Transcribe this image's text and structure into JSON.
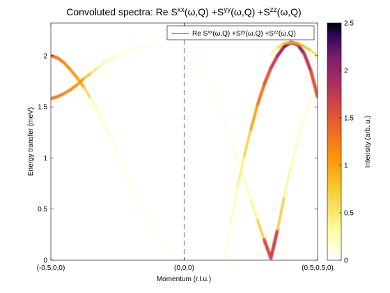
{
  "chart_data": {
    "type": "heatmap",
    "title": {
      "parts": [
        {
          "t": "Convoluted spectra: Re S"
        },
        {
          "t": "xx",
          "sup": true
        },
        {
          "t": "(ω,Q) +S"
        },
        {
          "t": "yy",
          "sup": true
        },
        {
          "t": "(ω,Q) +S"
        },
        {
          "t": "zz",
          "sup": true
        },
        {
          "t": "(ω,Q)"
        }
      ]
    },
    "xlabel": "Momentum (r.l.u.)",
    "ylabel": "Energy transfer (meV)",
    "colorbar_label": "Intensity (arb. u.)",
    "colormap": "inverted inferno (white → yellow → orange → magenta → purple → black)",
    "x_ticks": [
      {
        "pos": 0.0,
        "label": "(-0.5,0,0)"
      },
      {
        "pos": 1.0,
        "label": "(0,0,0)"
      },
      {
        "pos": 2.0,
        "label": "(0.5,0.5,0)"
      }
    ],
    "x_range": [
      0,
      2
    ],
    "ylim": [
      0,
      2.32
    ],
    "y_ticks": [
      0,
      0.5,
      1,
      1.5,
      2
    ],
    "y_tick_labels": [
      "0",
      "0.5",
      "1",
      "1.5",
      "2"
    ],
    "clim": [
      0,
      2.5
    ],
    "colorbar_ticks": [
      0,
      0.5,
      1,
      1.5,
      2,
      2.5
    ],
    "colorbar_tick_labels": [
      "0",
      "0.5",
      "1",
      "1.5",
      "2",
      "2.5"
    ],
    "segment_boundary_x": 1.0,
    "legend": {
      "location": "top-right",
      "entry": {
        "parts": [
          {
            "t": "Re S"
          },
          {
            "t": "xx",
            "sup": true
          },
          {
            "t": "(ω,Q) +S"
          },
          {
            "t": "yy",
            "sup": true
          },
          {
            "t": "(ω,Q) +S"
          },
          {
            "t": "zz",
            "sup": true
          },
          {
            "t": "(ω,Q)"
          }
        ]
      }
    },
    "series": [
      {
        "x": [
          0.0,
          0.05,
          0.1,
          0.15,
          0.2,
          0.25,
          0.3,
          0.35,
          0.4,
          0.45,
          0.5,
          0.55,
          0.6,
          0.65,
          0.7,
          0.75,
          0.8,
          0.85,
          0.9,
          0.95,
          1.0
        ],
        "y": [
          2.0,
          1.98,
          1.93,
          1.86,
          1.78,
          1.69,
          1.58,
          1.46,
          1.33,
          1.19,
          1.04,
          0.89,
          0.74,
          0.6,
          0.47,
          0.35,
          0.24,
          0.16,
          0.08,
          0.03,
          0.0
        ],
        "intensity": [
          1.4,
          1.3,
          1.2,
          1.1,
          1.05,
          1.0,
          0.3,
          0.25,
          0.2,
          0.18,
          0.15,
          0.13,
          0.12,
          0.1,
          0.09,
          0.08,
          0.07,
          0.06,
          0.05,
          0.04,
          0.03
        ]
      },
      {
        "x": [
          0.0,
          0.05,
          0.1,
          0.15,
          0.2,
          0.25,
          0.3,
          0.35,
          0.4,
          0.45,
          0.5,
          0.55,
          0.6,
          0.65,
          0.7,
          0.75,
          0.8,
          0.85,
          0.9,
          0.95,
          1.0
        ],
        "y": [
          1.58,
          1.6,
          1.63,
          1.67,
          1.72,
          1.78,
          1.83,
          1.88,
          1.93,
          1.97,
          2.01,
          2.04,
          2.06,
          2.08,
          2.09,
          2.1,
          2.11,
          2.12,
          2.12,
          2.12,
          2.12
        ],
        "intensity": [
          1.3,
          1.25,
          1.2,
          1.15,
          1.1,
          1.0,
          0.6,
          0.45,
          0.35,
          0.28,
          0.22,
          0.18,
          0.15,
          0.12,
          0.1,
          0.08,
          0.07,
          0.06,
          0.05,
          0.04,
          0.03
        ]
      },
      {
        "x": [
          1.0,
          1.05,
          1.1,
          1.15,
          1.2,
          1.25,
          1.3,
          1.35,
          1.4,
          1.45,
          1.5,
          1.55,
          1.6,
          1.65,
          1.7,
          1.75,
          1.8,
          1.85,
          1.9,
          1.95,
          2.0
        ],
        "y": [
          2.12,
          2.05,
          1.95,
          1.83,
          1.69,
          1.53,
          1.36,
          1.18,
          0.99,
          0.79,
          0.59,
          0.39,
          0.2,
          0.02,
          0.3,
          0.62,
          0.92,
          1.18,
          1.4,
          1.58,
          1.72
        ],
        "intensity": [
          0.04,
          0.05,
          0.06,
          0.07,
          0.08,
          0.09,
          0.11,
          0.14,
          0.18,
          0.23,
          0.3,
          0.5,
          0.9,
          2.3,
          1.0,
          0.45,
          0.3,
          0.24,
          0.2,
          0.18,
          0.16
        ]
      },
      {
        "x": [
          1.3,
          1.35,
          1.4,
          1.45,
          1.5,
          1.55,
          1.6,
          1.65,
          1.7,
          1.75,
          1.8,
          1.85,
          1.9,
          1.95,
          2.0
        ],
        "y": [
          0.0,
          0.38,
          0.72,
          1.02,
          1.28,
          1.52,
          1.72,
          1.88,
          2.0,
          2.09,
          2.13,
          2.11,
          2.02,
          1.85,
          1.6
        ],
        "intensity": [
          0.1,
          0.2,
          0.35,
          0.55,
          0.85,
          1.15,
          1.4,
          1.6,
          1.8,
          2.0,
          2.3,
          2.2,
          1.9,
          1.6,
          1.5
        ]
      },
      {
        "x": [
          1.65,
          1.7,
          1.75,
          1.8,
          1.85,
          1.9,
          1.95,
          2.0
        ],
        "y": [
          2.02,
          2.08,
          2.12,
          2.13,
          2.12,
          2.09,
          2.05,
          2.0
        ],
        "intensity": [
          0.3,
          0.5,
          0.8,
          1.0,
          1.0,
          0.9,
          0.7,
          0.5
        ]
      }
    ]
  }
}
